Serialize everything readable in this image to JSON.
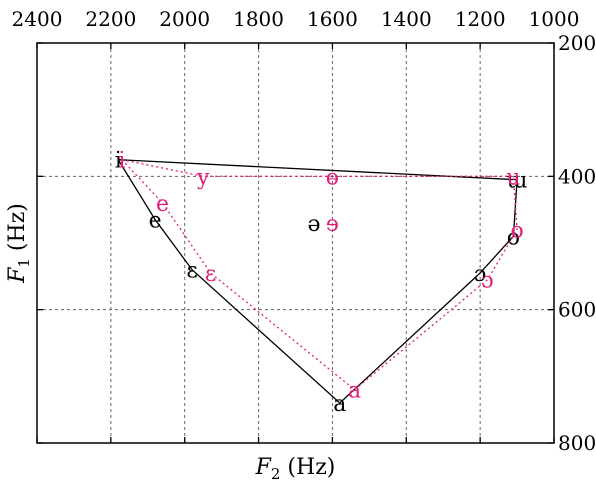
{
  "chart_data": {
    "type": "scatter",
    "title": "",
    "xlabel": {
      "symbol": "F",
      "subscript": "2",
      "unit": " (Hz)"
    },
    "ylabel": {
      "symbol": "F",
      "subscript": "1",
      "unit": " (Hz)"
    },
    "xlim": [
      2400,
      1000
    ],
    "ylim": [
      200,
      800
    ],
    "x_reversed": true,
    "y_reversed": true,
    "x_ticks": [
      2400,
      2200,
      2000,
      1800,
      1600,
      1400,
      1200,
      1000
    ],
    "y_ticks": [
      200,
      400,
      600,
      800
    ],
    "x_tick_labels": [
      "2400",
      "2200",
      "2000",
      "1800",
      "1600",
      "1400",
      "1200",
      "1000"
    ],
    "y_tick_labels": [
      "200",
      "400",
      "600",
      "800"
    ],
    "x_axis_position": "top",
    "y_axis_position": "right",
    "grid": true,
    "series": [
      {
        "color": "#000000",
        "line_style": "solid",
        "points": [
          {
            "label": "i",
            "f2": 2180,
            "f1": 375
          },
          {
            "label": "e",
            "f2": 2080,
            "f1": 465
          },
          {
            "label": "ɛ",
            "f2": 1980,
            "f1": 540
          },
          {
            "label": "a",
            "f2": 1580,
            "f1": 740
          },
          {
            "label": "ɔ",
            "f2": 1200,
            "f1": 545
          },
          {
            "label": "o",
            "f2": 1110,
            "f1": 490
          },
          {
            "label": "ɯ",
            "f2": 1100,
            "f1": 405
          },
          {
            "label": "ə",
            "f2": 1650,
            "f1": 470
          }
        ],
        "polygon": [
          "i",
          "e",
          "ɛ",
          "a",
          "ɔ",
          "o",
          "ɯ",
          "i"
        ]
      },
      {
        "color": "#e0207a",
        "line_style": "dotted",
        "points": [
          {
            "label": "i",
            "f2": 2170,
            "f1": 375
          },
          {
            "label": "e",
            "f2": 2060,
            "f1": 440
          },
          {
            "label": "ɛ",
            "f2": 1930,
            "f1": 545
          },
          {
            "label": "a",
            "f2": 1540,
            "f1": 720
          },
          {
            "label": "ɔ",
            "f2": 1180,
            "f1": 555
          },
          {
            "label": "o",
            "f2": 1100,
            "f1": 480
          },
          {
            "label": "u",
            "f2": 1110,
            "f1": 400
          },
          {
            "label": "y",
            "f2": 1950,
            "f1": 400
          },
          {
            "label": "ɵ",
            "f2": 1600,
            "f1": 400
          },
          {
            "label": "ɘ",
            "f2": 1600,
            "f1": 470
          }
        ],
        "polygon": [
          "i",
          "e",
          "ɛ",
          "a",
          "ɔ",
          "o",
          "u",
          "ɵ",
          "y",
          "i"
        ]
      }
    ]
  }
}
